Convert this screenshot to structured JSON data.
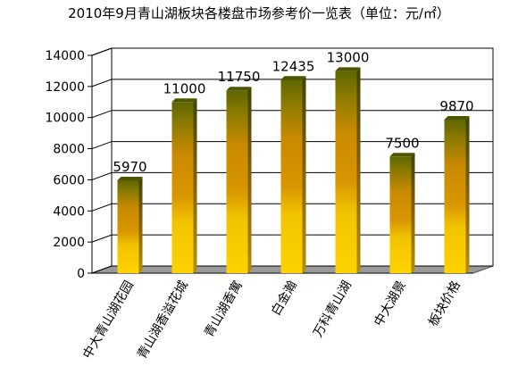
{
  "chart_data": {
    "type": "bar",
    "title": "2010年9月青山湖板块各楼盘市场参考价一览表（单位：元/㎡）",
    "categories": [
      "中大青山湖花园",
      "青山湖香溢花城",
      "青山湖香寓",
      "白金瀚",
      "万科青山湖",
      "中大湖景",
      "板块价格"
    ],
    "values": [
      5970,
      11000,
      11750,
      12435,
      13000,
      7500,
      9870
    ],
    "data_labels": [
      "5970",
      "11000",
      "11750",
      "12435",
      "13000",
      "7500",
      "9870"
    ],
    "y_ticks": [
      "0",
      "2000",
      "4000",
      "6000",
      "8000",
      "10000",
      "12000",
      "14000"
    ],
    "ylim": [
      0,
      14000
    ],
    "grid": true,
    "legend": "none",
    "xlabel": "",
    "ylabel": "",
    "colors": {
      "bar_bottom": "#ffd200",
      "bar_mid": "#d48f00",
      "bar_top": "#6b6b00",
      "wall": "#ffffff",
      "grid": "#000000",
      "floor": "#9a9a9a"
    }
  }
}
